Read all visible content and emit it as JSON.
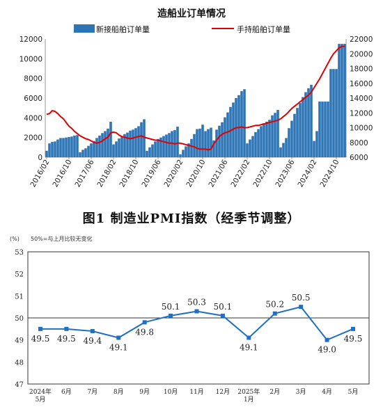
{
  "figure2_title": "图1  制造业PMI指数（经季节调整）",
  "chart_data": [
    {
      "type": "bar+line",
      "title": "造船业订单情况",
      "series": [
        {
          "name": "新接船舶订单量",
          "kind": "bar",
          "axis": "left",
          "color": "#2e75b6"
        },
        {
          "name": "手持船舶订单量",
          "kind": "line",
          "axis": "right",
          "color": "#e00000"
        }
      ],
      "ylim_left": [
        0,
        12000
      ],
      "yticks_left": [
        "0",
        "2000",
        "4000",
        "6000",
        "8000",
        "10000",
        "12000"
      ],
      "ylim_right": [
        6000,
        22000
      ],
      "yticks_right": [
        "6000",
        "8000",
        "10000",
        "12000",
        "14000",
        "16000",
        "18000",
        "20000",
        "22000"
      ],
      "x_tick_labels": [
        "2016/02",
        "2016/10",
        "2017/06",
        "2018/02",
        "2018/10",
        "2019/06",
        "2020/02",
        "2020/10",
        "2021/06",
        "2022/02",
        "2022/10",
        "2023/06",
        "2024/02",
        "2024/10"
      ],
      "x_start": "2016/02",
      "x_end": "2024/12",
      "bars": [
        650,
        1400,
        1550,
        1600,
        1800,
        1950,
        1950,
        2000,
        2050,
        2100,
        2200,
        2250,
        500,
        750,
        900,
        1150,
        1400,
        1650,
        1950,
        2200,
        2450,
        2650,
        2900,
        3600,
        1300,
        1600,
        1900,
        2100,
        2350,
        2500,
        2700,
        2800,
        2950,
        3150,
        3550,
        3850,
        650,
        1000,
        1300,
        1600,
        1850,
        2000,
        2150,
        2300,
        2450,
        2650,
        2750,
        3100,
        300,
        750,
        1100,
        1400,
        1850,
        2350,
        2850,
        2900,
        3300,
        2650,
        2850,
        3000,
        1700,
        2800,
        3200,
        3550,
        4050,
        4550,
        5100,
        5550,
        6000,
        6300,
        6700,
        6900,
        1400,
        1800,
        2150,
        2550,
        2850,
        3150,
        3450,
        3600,
        3800,
        4250,
        4500,
        4800,
        1000,
        1450,
        1950,
        2950,
        3700,
        4400,
        5000,
        5500,
        6100,
        6600,
        7000,
        7350,
        1650,
        2650,
        5650,
        5650,
        5650,
        5650,
        8950,
        8950,
        8950,
        11500,
        11500,
        11500
      ],
      "line": [
        11800,
        11900,
        12300,
        12200,
        11900,
        11500,
        11200,
        10700,
        10200,
        9900,
        9500,
        9200,
        8900,
        8700,
        8500,
        8400,
        8200,
        8000,
        7900,
        8000,
        8200,
        8500,
        8700,
        9300,
        9400,
        9300,
        9000,
        8800,
        8700,
        8600,
        8500,
        8600,
        8700,
        8800,
        8900,
        8700,
        8600,
        8500,
        8400,
        8300,
        8300,
        8200,
        8100,
        8000,
        7900,
        7900,
        7800,
        7900,
        7900,
        7800,
        7700,
        7600,
        7500,
        7400,
        7200,
        7100,
        7100,
        7100,
        7000,
        7100,
        7800,
        8300,
        8800,
        9100,
        9300,
        9400,
        9600,
        9800,
        10000,
        10000,
        10100,
        10000,
        10000,
        10100,
        10200,
        10300,
        10300,
        10400,
        10500,
        10600,
        10700,
        10800,
        10900,
        11000,
        11200,
        11500,
        11800,
        12200,
        12600,
        12900,
        13200,
        13500,
        13800,
        14100,
        14400,
        14800,
        15400,
        16000,
        16600,
        17300,
        18000,
        18700,
        19400,
        20000,
        20400,
        20800,
        21000,
        21000
      ]
    },
    {
      "type": "line",
      "unit_label": "(%)",
      "annotation": "50%=与上月比较无变化",
      "ylim": [
        47,
        53
      ],
      "yticks": [
        "47",
        "48",
        "49",
        "50",
        "51",
        "52",
        "53"
      ],
      "reference_line": 50,
      "color": "#1f6fc5",
      "categories": [
        [
          "2024年",
          "5月"
        ],
        [
          "6月"
        ],
        [
          "7月"
        ],
        [
          "8月"
        ],
        [
          "9月"
        ],
        [
          "10月"
        ],
        [
          "11月"
        ],
        [
          "12月"
        ],
        [
          "2025年",
          "1月"
        ],
        [
          "2月"
        ],
        [
          "3月"
        ],
        [
          "4月"
        ],
        [
          "5月"
        ]
      ],
      "values": [
        49.5,
        49.5,
        49.4,
        49.1,
        49.8,
        50.1,
        50.3,
        50.1,
        49.1,
        50.2,
        50.5,
        49.0,
        49.5
      ],
      "data_labels": [
        "49.5",
        "49.5",
        "49.4",
        "49.1",
        "49.8",
        "50.1",
        "50.3",
        "50.1",
        "49.1",
        "50.2",
        "50.5",
        "49.0",
        "49.5"
      ]
    }
  ]
}
